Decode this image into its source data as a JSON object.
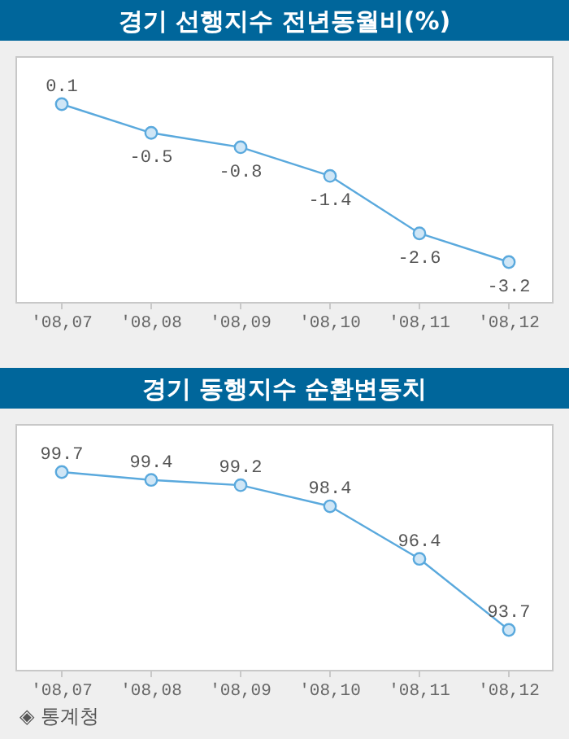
{
  "chart_data": [
    {
      "type": "line",
      "title": "경기 선행지수 전년동월비(%)",
      "categories": [
        "'08,07",
        "'08,08",
        "'08,09",
        "'08,10",
        "'08,11",
        "'08,12"
      ],
      "series": [
        {
          "color": "#5aa9dd",
          "values": [
            0.1,
            -0.5,
            -0.8,
            -1.4,
            -2.6,
            -3.2
          ]
        }
      ],
      "data_labels": true,
      "marker": "circle"
    },
    {
      "type": "line",
      "title": "경기 동행지수 순환변동치",
      "categories": [
        "'08,07",
        "'08,08",
        "'08,09",
        "'08,10",
        "'08,11",
        "'08,12"
      ],
      "series": [
        {
          "color": "#5aa9dd",
          "values": [
            99.7,
            99.4,
            99.2,
            98.4,
            96.4,
            93.7
          ]
        }
      ],
      "data_labels": true,
      "marker": "circle",
      "annotations": [
        "◈ 통계청"
      ]
    }
  ]
}
